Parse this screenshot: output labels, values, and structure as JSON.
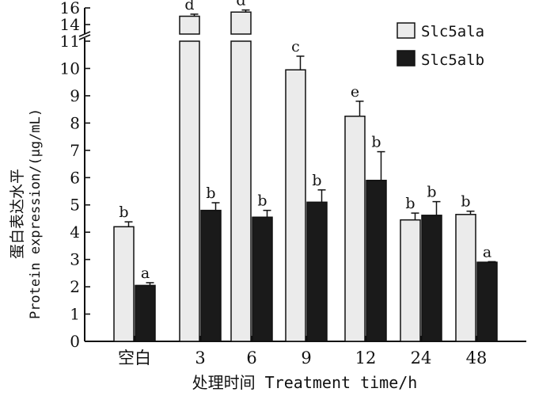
{
  "chart_data": {
    "type": "bar",
    "categories": [
      "空白",
      "3",
      "6",
      "9",
      "12",
      "24",
      "48"
    ],
    "series": [
      {
        "name": "Slc5ala",
        "color": "#ebebeb",
        "values": [
          4.2,
          15.0,
          15.5,
          9.95,
          8.25,
          4.45,
          4.65
        ],
        "errors": [
          0.18,
          0.25,
          0.25,
          0.5,
          0.55,
          0.25,
          0.12
        ],
        "letters": [
          "b",
          "d",
          "d",
          "c",
          "e",
          "b",
          "b"
        ]
      },
      {
        "name": "Slc5alb",
        "color": "#1a1a1a",
        "values": [
          2.05,
          4.8,
          4.55,
          5.1,
          5.9,
          4.62,
          2.9
        ],
        "errors": [
          0.1,
          0.28,
          0.25,
          0.45,
          1.05,
          0.5,
          0.02
        ],
        "letters": [
          "a",
          "b",
          "b",
          "b",
          "b",
          "b",
          "a"
        ]
      }
    ],
    "y_ticks_lower": [
      "0",
      "1",
      "2",
      "3",
      "4",
      "5",
      "6",
      "7",
      "8",
      "9",
      "10",
      "11"
    ],
    "y_ticks_upper": [
      "14",
      "16"
    ],
    "ylim_lower": [
      0,
      11
    ],
    "ylim_upper": [
      14,
      16
    ],
    "xlabel": "处理时间 Treatment time/h",
    "ylabel_cn": "蛋白表达水平",
    "ylabel_en": "Protein expression/(μg/mL)",
    "legend_position": "top-right",
    "axis_break": true
  }
}
